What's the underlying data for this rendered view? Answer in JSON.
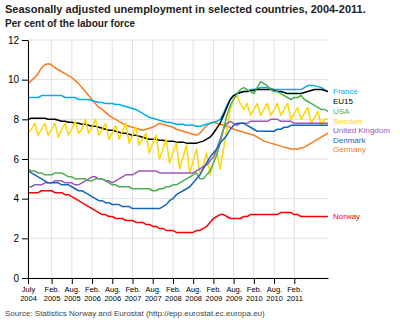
{
  "chart_data": {
    "type": "line",
    "title": "Seasonally adjusted unemployment in selected countries, 2004-2011.",
    "subtitle": "Per cent of the labour force",
    "annotations": [
      "Source: Statistics Norway and Eurostat (http://epp.eurostat.ec.europa.eu)"
    ],
    "categories": [
      "July\n2004",
      null,
      null,
      null,
      null,
      null,
      null,
      "Feb.\n2005",
      null,
      null,
      null,
      null,
      null,
      "Aug.\n2005",
      null,
      null,
      null,
      null,
      null,
      "Feb.\n2006",
      null,
      null,
      null,
      null,
      null,
      "Aug.\n2006",
      null,
      null,
      null,
      null,
      null,
      "Feb.\n2007",
      null,
      null,
      null,
      null,
      null,
      "Aug.\n2007",
      null,
      null,
      null,
      null,
      null,
      "Feb.\n2008",
      null,
      null,
      null,
      null,
      null,
      "Aug.\n2008",
      null,
      null,
      null,
      null,
      null,
      "Feb.\n2009",
      null,
      null,
      null,
      null,
      null,
      "Aug.\n2009",
      null,
      null,
      null,
      null,
      null,
      "Feb.\n2010",
      null,
      null,
      null,
      null,
      null,
      "Aug.\n2010",
      null,
      null,
      null,
      null,
      null,
      "Feb.\n2011",
      null,
      null,
      null,
      null,
      null,
      null,
      null,
      null,
      null,
      null
    ],
    "ylim": [
      0,
      12
    ],
    "yticks": [
      0,
      2,
      4,
      6,
      8,
      10,
      12
    ],
    "grid": true,
    "series": [
      {
        "name": "Germany",
        "color": "#F97B1A",
        "values": [
          9.8,
          9.95,
          10.1,
          10.3,
          10.6,
          10.75,
          10.8,
          10.75,
          10.6,
          10.5,
          10.4,
          10.3,
          10.2,
          10.1,
          9.95,
          9.8,
          9.6,
          9.4,
          9.2,
          9.0,
          8.8,
          8.6,
          8.5,
          8.35,
          8.2,
          8.1,
          8.0,
          7.9,
          7.8,
          7.7,
          7.65,
          7.6,
          7.55,
          7.5,
          7.45,
          7.5,
          7.55,
          7.6,
          7.7,
          7.8,
          7.75,
          7.7,
          7.65,
          7.6,
          7.5,
          7.45,
          7.4,
          7.35,
          7.3,
          7.25,
          7.2,
          7.3,
          7.5,
          7.7,
          7.8,
          7.85,
          7.8,
          7.75,
          7.7,
          7.65,
          7.6,
          7.5,
          7.45,
          7.4,
          7.35,
          7.3,
          7.25,
          7.2,
          7.1,
          7.0,
          6.9,
          6.85,
          6.8,
          6.75,
          6.7,
          6.65,
          6.6,
          6.55,
          6.5,
          6.5,
          6.5,
          6.55,
          6.6,
          6.7,
          6.8,
          6.9,
          7.0,
          7.1,
          7.2,
          7.3
        ]
      },
      {
        "name": "France",
        "color": "#00AEEF",
        "values": [
          9.1,
          9.1,
          9.1,
          9.1,
          9.2,
          9.2,
          9.2,
          9.2,
          9.2,
          9.2,
          9.2,
          9.1,
          9.1,
          9.1,
          9.1,
          9.0,
          9.0,
          9.0,
          9.0,
          8.95,
          8.9,
          8.85,
          8.85,
          8.8,
          8.8,
          8.8,
          8.75,
          8.75,
          8.7,
          8.65,
          8.6,
          8.55,
          8.5,
          8.4,
          8.3,
          8.2,
          8.1,
          8.05,
          8.0,
          7.95,
          7.9,
          7.85,
          7.85,
          7.8,
          7.75,
          7.75,
          7.75,
          7.7,
          7.7,
          7.7,
          7.65,
          7.65,
          7.7,
          7.75,
          7.8,
          7.85,
          7.9,
          8.0,
          8.3,
          8.7,
          9.0,
          9.2,
          9.3,
          9.35,
          9.4,
          9.4,
          9.5,
          9.5,
          9.55,
          9.6,
          9.6,
          9.6,
          9.55,
          9.5,
          9.5,
          9.5,
          9.5,
          9.5,
          9.5,
          9.5,
          9.5,
          9.5,
          9.6,
          9.7,
          9.7,
          9.7,
          9.65,
          9.6,
          9.5,
          9.4
        ]
      },
      {
        "name": "EU15",
        "color": "#000000",
        "values": [
          8.0,
          8.05,
          8.05,
          8.05,
          8.05,
          8.05,
          8.0,
          8.0,
          8.0,
          7.95,
          7.9,
          7.9,
          7.85,
          7.85,
          7.8,
          7.8,
          7.75,
          7.75,
          7.7,
          7.65,
          7.65,
          7.6,
          7.55,
          7.5,
          7.45,
          7.45,
          7.4,
          7.35,
          7.3,
          7.3,
          7.25,
          7.2,
          7.2,
          7.15,
          7.1,
          7.05,
          7.0,
          7.0,
          7.0,
          6.95,
          6.95,
          6.9,
          6.9,
          6.9,
          6.85,
          6.85,
          6.85,
          6.8,
          6.8,
          6.8,
          6.8,
          6.85,
          6.9,
          7.0,
          7.1,
          7.3,
          7.55,
          7.8,
          8.2,
          8.6,
          9.0,
          9.2,
          9.3,
          9.35,
          9.4,
          9.4,
          9.45,
          9.45,
          9.5,
          9.5,
          9.5,
          9.5,
          9.5,
          9.45,
          9.4,
          9.4,
          9.35,
          9.3,
          9.3,
          9.3,
          9.3,
          9.3,
          9.35,
          9.4,
          9.45,
          9.5,
          9.5,
          9.5,
          9.45,
          9.4
        ]
      },
      {
        "name": "Sweden",
        "color": "#FFD700",
        "values": [
          7.3,
          7.5,
          7.8,
          7.2,
          7.5,
          7.8,
          7.2,
          7.5,
          7.8,
          7.1,
          7.5,
          7.8,
          7.2,
          7.5,
          7.9,
          7.3,
          7.5,
          8.0,
          7.3,
          7.6,
          8.0,
          7.2,
          7.5,
          7.8,
          7.0,
          7.3,
          7.7,
          7.0,
          7.4,
          7.8,
          6.8,
          7.2,
          7.6,
          6.7,
          7.0,
          7.3,
          6.3,
          6.8,
          7.2,
          6.0,
          6.5,
          7.0,
          5.8,
          6.3,
          6.8,
          5.5,
          6.1,
          6.7,
          5.3,
          5.9,
          6.5,
          5.2,
          5.7,
          6.3,
          5.2,
          5.8,
          6.4,
          5.5,
          6.5,
          7.5,
          8.5,
          9.0,
          9.2,
          8.8,
          8.5,
          8.8,
          8.2,
          8.5,
          8.8,
          8.2,
          8.5,
          8.8,
          8.2,
          8.5,
          8.8,
          8.2,
          8.5,
          8.8,
          8.0,
          8.3,
          8.6,
          8.0,
          8.3,
          8.6,
          7.8,
          8.1,
          8.4,
          7.7,
          8.0,
          8.0
        ]
      },
      {
        "name": "United Kingdom",
        "color": "#9B59B6",
        "values": [
          4.6,
          4.6,
          4.7,
          4.7,
          4.7,
          4.8,
          4.8,
          4.8,
          4.9,
          4.9,
          4.9,
          4.8,
          4.8,
          4.8,
          4.7,
          4.7,
          4.8,
          4.9,
          5.0,
          5.1,
          5.1,
          5.0,
          5.0,
          4.9,
          4.9,
          4.8,
          4.9,
          5.0,
          5.1,
          5.2,
          5.2,
          5.2,
          5.3,
          5.4,
          5.4,
          5.4,
          5.4,
          5.4,
          5.4,
          5.3,
          5.3,
          5.3,
          5.3,
          5.3,
          5.3,
          5.3,
          5.3,
          5.3,
          5.3,
          5.3,
          5.4,
          5.5,
          5.6,
          5.7,
          5.9,
          6.1,
          6.5,
          7.0,
          7.5,
          7.8,
          7.9,
          7.8,
          7.7,
          7.8,
          7.8,
          7.8,
          7.9,
          7.9,
          7.9,
          7.9,
          7.9,
          7.9,
          8.0,
          8.0,
          8.0,
          7.9,
          7.9,
          7.9,
          7.9,
          7.8,
          7.8,
          7.8,
          7.8,
          7.8,
          7.8,
          7.8,
          7.8,
          7.8,
          7.8,
          7.8
        ]
      },
      {
        "name": "USA",
        "color": "#4CAF50",
        "values": [
          5.5,
          5.4,
          5.4,
          5.3,
          5.3,
          5.2,
          5.2,
          5.2,
          5.3,
          5.3,
          5.3,
          5.2,
          5.1,
          5.1,
          5.0,
          5.0,
          5.0,
          5.0,
          4.9,
          4.9,
          5.0,
          5.0,
          5.0,
          4.9,
          4.8,
          4.7,
          4.7,
          4.6,
          4.6,
          4.6,
          4.6,
          4.5,
          4.5,
          4.5,
          4.5,
          4.5,
          4.5,
          4.4,
          4.4,
          4.5,
          4.5,
          4.6,
          4.6,
          4.7,
          4.7,
          4.8,
          4.9,
          5.0,
          5.1,
          5.2,
          5.3,
          5.0,
          5.0,
          5.2,
          5.4,
          5.8,
          6.2,
          6.8,
          7.5,
          8.2,
          8.7,
          9.0,
          9.3,
          9.5,
          9.6,
          9.5,
          9.4,
          9.3,
          9.6,
          9.9,
          9.8,
          9.7,
          9.5,
          9.4,
          9.4,
          9.3,
          9.2,
          9.1,
          9.0,
          9.1,
          9.1,
          9.2,
          9.0,
          8.9,
          8.8,
          8.7,
          8.6,
          8.5,
          8.5,
          8.4
        ]
      },
      {
        "name": "Denmark",
        "color": "#1565C0",
        "values": [
          5.4,
          5.3,
          5.2,
          5.1,
          5.0,
          4.9,
          4.8,
          4.8,
          4.8,
          4.8,
          4.7,
          4.7,
          4.7,
          4.6,
          4.5,
          4.4,
          4.4,
          4.3,
          4.2,
          4.1,
          4.0,
          3.9,
          3.9,
          3.8,
          3.8,
          3.7,
          3.7,
          3.7,
          3.6,
          3.6,
          3.6,
          3.5,
          3.5,
          3.5,
          3.5,
          3.5,
          3.5,
          3.5,
          3.5,
          3.5,
          3.6,
          3.7,
          3.9,
          4.0,
          4.2,
          4.3,
          4.4,
          4.5,
          4.6,
          4.8,
          5.0,
          5.2,
          5.5,
          5.8,
          6.1,
          6.3,
          6.5,
          6.8,
          7.0,
          7.2,
          7.5,
          7.7,
          7.8,
          7.8,
          7.8,
          7.7,
          7.6,
          7.5,
          7.4,
          7.4,
          7.4,
          7.4,
          7.4,
          7.4,
          7.5,
          7.5,
          7.6,
          7.6,
          7.7,
          7.7,
          7.7,
          7.7,
          7.7,
          7.7,
          7.7,
          7.7,
          7.7,
          7.7,
          7.7,
          7.7
        ]
      },
      {
        "name": "Norway",
        "color": "#FF0000",
        "values": [
          4.3,
          4.3,
          4.3,
          4.3,
          4.4,
          4.4,
          4.4,
          4.4,
          4.3,
          4.3,
          4.3,
          4.2,
          4.2,
          4.1,
          4.0,
          3.9,
          3.8,
          3.7,
          3.6,
          3.5,
          3.4,
          3.3,
          3.2,
          3.2,
          3.1,
          3.1,
          3.0,
          3.0,
          3.0,
          2.9,
          2.9,
          2.9,
          2.8,
          2.8,
          2.8,
          2.7,
          2.7,
          2.6,
          2.6,
          2.5,
          2.5,
          2.4,
          2.4,
          2.4,
          2.3,
          2.3,
          2.3,
          2.3,
          2.3,
          2.3,
          2.4,
          2.4,
          2.5,
          2.6,
          2.8,
          3.0,
          3.1,
          3.2,
          3.2,
          3.1,
          3.0,
          3.0,
          3.0,
          3.0,
          3.1,
          3.1,
          3.2,
          3.2,
          3.2,
          3.2,
          3.2,
          3.2,
          3.2,
          3.2,
          3.2,
          3.3,
          3.3,
          3.3,
          3.3,
          3.2,
          3.2,
          3.1,
          3.1,
          3.1,
          3.1,
          3.1,
          3.1,
          3.1,
          3.1,
          3.1
        ]
      }
    ]
  }
}
